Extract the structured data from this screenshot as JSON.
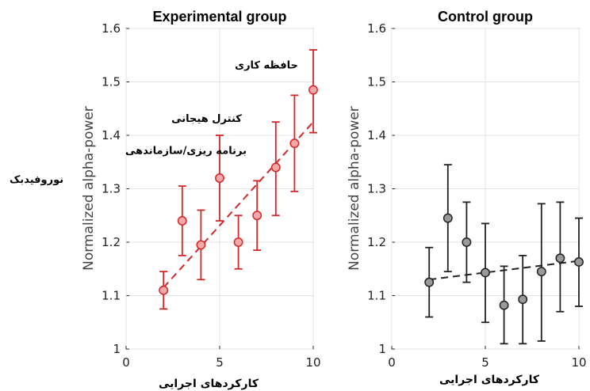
{
  "side_label": "نوروفیدبک",
  "chart_data": [
    {
      "type": "scatter",
      "title": "Experimental group",
      "xlabel": "کارکردهای اجرایی",
      "ylabel": "Normalized alpha-power",
      "xlim": [
        0,
        10
      ],
      "ylim": [
        1.0,
        1.6
      ],
      "x_ticks": [
        "0",
        "5",
        "10"
      ],
      "y_ticks": [
        "1",
        "1.1",
        "1.2",
        "1.3",
        "1.4",
        "1.5",
        "1.6"
      ],
      "grid": true,
      "color": "#d62728",
      "marker_fill": "#f4a8a8",
      "points": [
        {
          "x": 2,
          "y": 1.11,
          "lo": 1.075,
          "hi": 1.145
        },
        {
          "x": 3,
          "y": 1.24,
          "lo": 1.175,
          "hi": 1.305
        },
        {
          "x": 4,
          "y": 1.195,
          "lo": 1.13,
          "hi": 1.26
        },
        {
          "x": 5,
          "y": 1.32,
          "lo": 1.24,
          "hi": 1.4
        },
        {
          "x": 6,
          "y": 1.2,
          "lo": 1.15,
          "hi": 1.25
        },
        {
          "x": 7,
          "y": 1.25,
          "lo": 1.185,
          "hi": 1.315
        },
        {
          "x": 8,
          "y": 1.34,
          "lo": 1.25,
          "hi": 1.425
        },
        {
          "x": 9,
          "y": 1.385,
          "lo": 1.295,
          "hi": 1.475
        },
        {
          "x": 10,
          "y": 1.485,
          "lo": 1.405,
          "hi": 1.56
        }
      ],
      "trend": {
        "x0": 2,
        "y0": 1.115,
        "x1": 10,
        "y1": 1.425
      },
      "annotations": [
        {
          "text": "حافظه کاری",
          "x": 7.5,
          "y": 1.525
        },
        {
          "text": "کنترل هیجانی",
          "x": 4.3,
          "y": 1.425
        },
        {
          "text": "برنامه ریزی/سازماندهی",
          "x": 3.2,
          "y": 1.365
        }
      ]
    },
    {
      "type": "scatter",
      "title": "Control group",
      "xlabel": "کارکردهای اجرایی",
      "ylabel": "Normalized alpha-power",
      "xlim": [
        0,
        10
      ],
      "ylim": [
        1.0,
        1.6
      ],
      "x_ticks": [
        "0",
        "5",
        "10"
      ],
      "y_ticks": [
        "1",
        "1.1",
        "1.2",
        "1.3",
        "1.4",
        "1.5",
        "1.6"
      ],
      "grid": true,
      "color": "#222222",
      "marker_fill": "#9a9a9a",
      "points": [
        {
          "x": 2,
          "y": 1.125,
          "lo": 1.06,
          "hi": 1.19
        },
        {
          "x": 3,
          "y": 1.245,
          "lo": 1.145,
          "hi": 1.345
        },
        {
          "x": 4,
          "y": 1.2,
          "lo": 1.125,
          "hi": 1.275
        },
        {
          "x": 5,
          "y": 1.143,
          "lo": 1.05,
          "hi": 1.235
        },
        {
          "x": 6,
          "y": 1.082,
          "lo": 1.01,
          "hi": 1.155
        },
        {
          "x": 7,
          "y": 1.093,
          "lo": 1.01,
          "hi": 1.175
        },
        {
          "x": 8,
          "y": 1.145,
          "lo": 1.015,
          "hi": 1.272
        },
        {
          "x": 9,
          "y": 1.17,
          "lo": 1.07,
          "hi": 1.275
        },
        {
          "x": 10,
          "y": 1.163,
          "lo": 1.08,
          "hi": 1.245
        }
      ],
      "trend": {
        "x0": 2,
        "y0": 1.13,
        "x1": 10,
        "y1": 1.165
      }
    }
  ]
}
